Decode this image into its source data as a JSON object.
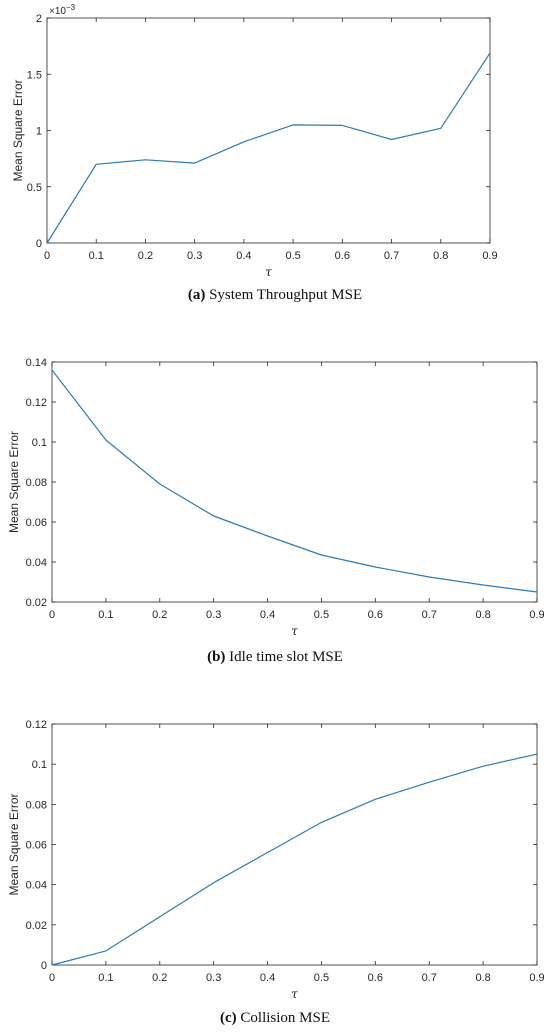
{
  "line_color": "#2b7bba",
  "chart_data": [
    {
      "type": "line",
      "xlabel": "τ",
      "ylabel": "Mean Square Error",
      "y_exponent_label": "×10",
      "y_exponent_power": "−3",
      "xlim": [
        0,
        0.9
      ],
      "ylim": [
        0,
        2
      ],
      "xticks": [
        0,
        0.1,
        0.2,
        0.3,
        0.4,
        0.5,
        0.6,
        0.7,
        0.8,
        0.9
      ],
      "xtick_labels": [
        "0",
        "0.1",
        "0.2",
        "0.3",
        "0.4",
        "0.5",
        "0.6",
        "0.7",
        "0.8",
        "0.9"
      ],
      "yticks": [
        0,
        0.5,
        1,
        1.5,
        2
      ],
      "ytick_labels": [
        "0",
        "0.5",
        "1",
        "1.5",
        "2"
      ],
      "grid": false,
      "series": [
        {
          "x": [
            0,
            0.1,
            0.2,
            0.3,
            0.4,
            0.5,
            0.6,
            0.7,
            0.8,
            0.9
          ],
          "y": [
            0,
            0.7,
            0.74,
            0.71,
            0.9,
            1.05,
            1.045,
            0.92,
            1.02,
            1.69
          ]
        }
      ],
      "caption_label": "(a)",
      "caption_text": "System Throughput MSE"
    },
    {
      "type": "line",
      "xlabel": "τ",
      "ylabel": "Mean Square Error",
      "xlim": [
        0,
        0.9
      ],
      "ylim": [
        0.02,
        0.14
      ],
      "xticks": [
        0,
        0.1,
        0.2,
        0.3,
        0.4,
        0.5,
        0.6,
        0.7,
        0.8,
        0.9
      ],
      "xtick_labels": [
        "0",
        "0.1",
        "0.2",
        "0.3",
        "0.4",
        "0.5",
        "0.6",
        "0.7",
        "0.8",
        "0.9"
      ],
      "yticks": [
        0.02,
        0.04,
        0.06,
        0.08,
        0.1,
        0.12,
        0.14
      ],
      "ytick_labels": [
        "0.02",
        "0.04",
        "0.06",
        "0.08",
        "0.1",
        "0.12",
        "0.14"
      ],
      "grid": false,
      "series": [
        {
          "x": [
            0,
            0.1,
            0.2,
            0.3,
            0.4,
            0.5,
            0.6,
            0.7,
            0.8,
            0.9
          ],
          "y": [
            0.136,
            0.101,
            0.079,
            0.063,
            0.053,
            0.0435,
            0.0375,
            0.0325,
            0.0285,
            0.025
          ]
        }
      ],
      "caption_label": "(b)",
      "caption_text": "Idle time slot MSE"
    },
    {
      "type": "line",
      "xlabel": "τ",
      "ylabel": "Mean Square Error",
      "xlim": [
        0,
        0.9
      ],
      "ylim": [
        0,
        0.12
      ],
      "xticks": [
        0,
        0.1,
        0.2,
        0.3,
        0.4,
        0.5,
        0.6,
        0.7,
        0.8,
        0.9
      ],
      "xtick_labels": [
        "0",
        "0.1",
        "0.2",
        "0.3",
        "0.4",
        "0.5",
        "0.6",
        "0.7",
        "0.8",
        "0.9"
      ],
      "yticks": [
        0,
        0.02,
        0.04,
        0.06,
        0.08,
        0.1,
        0.12
      ],
      "ytick_labels": [
        "0",
        "0.02",
        "0.04",
        "0.06",
        "0.08",
        "0.1",
        "0.12"
      ],
      "grid": false,
      "series": [
        {
          "x": [
            0,
            0.1,
            0.2,
            0.3,
            0.4,
            0.5,
            0.6,
            0.7,
            0.8,
            0.9
          ],
          "y": [
            0,
            0.007,
            0.024,
            0.041,
            0.056,
            0.071,
            0.0825,
            0.091,
            0.099,
            0.105
          ]
        }
      ],
      "caption_label": "(c)",
      "caption_text": "Collision MSE"
    }
  ]
}
